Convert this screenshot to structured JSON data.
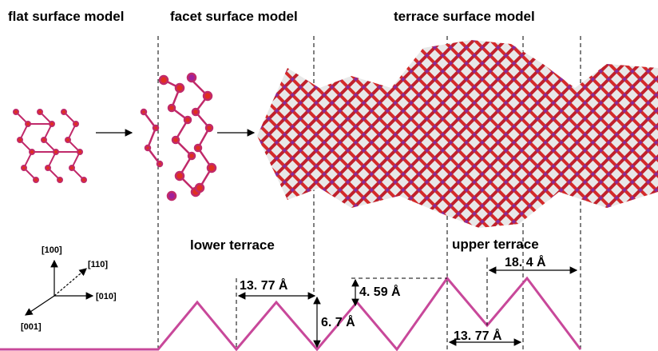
{
  "titles": [
    "flat surface model",
    "facet surface model",
    "terrace surface model"
  ],
  "terraces": {
    "lower": "lower terrace",
    "upper": "upper terrace"
  },
  "dimensions": [
    "13. 77 Å",
    "6. 7 Å",
    "4. 59 Å",
    "18. 4 Å",
    "13. 77 Å"
  ],
  "axes": [
    "[100]",
    "[110]",
    "[010]",
    "[001]"
  ]
}
